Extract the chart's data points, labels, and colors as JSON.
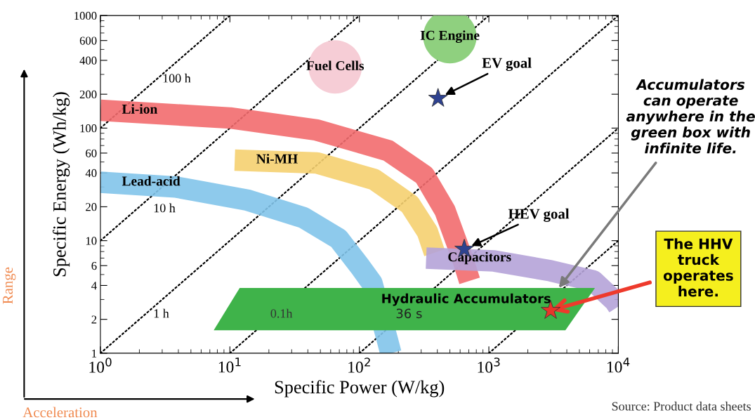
{
  "chart_data": {
    "type": "line",
    "xlabel": "Specific Power (W/kg)",
    "ylabel": "Specific Energy (Wh/kg)",
    "log": "xy",
    "grid": false,
    "legend": false,
    "xlim": [
      1,
      10000
    ],
    "ylim": [
      1,
      1000
    ],
    "xticks": [
      {
        "value": 1,
        "label": "10$^{0}$"
      },
      {
        "value": 10,
        "label": "10$^{1}$"
      },
      {
        "value": 100,
        "label": "10$^{2}$"
      },
      {
        "value": 1000,
        "label": "10$^{3}$"
      },
      {
        "value": 10000,
        "label": "10$^{4}$"
      }
    ],
    "yticks": [
      1,
      2,
      4,
      6,
      10,
      20,
      40,
      60,
      100,
      200,
      400,
      600,
      1000
    ],
    "series": [
      {
        "line_style": "dotted",
        "color": "#000000",
        "x": [
          1,
          10
        ],
        "values": [
          100,
          1000
        ]
      },
      {
        "line_style": "dotted",
        "color": "#000000",
        "x": [
          1,
          100
        ],
        "values": [
          10,
          1000
        ]
      },
      {
        "type": "line",
        "line_style": "dotted",
        "color": "#000000",
        "x": [
          1,
          1000
        ],
        "values": [
          1,
          1000
        ]
      },
      {
        "type": "line",
        "line_style": "dotted",
        "color": "#000000",
        "x": [
          10,
          10000
        ],
        "values": [
          1,
          1000
        ]
      },
      {
        "type": "line",
        "line_style": "dotted",
        "color": "#000000",
        "x": [
          100,
          10000
        ],
        "values": [
          1,
          100
        ]
      },
      {
        "type": "line",
        "line_style": "dotted",
        "color": "#000000",
        "x": [
          1000,
          10000
        ],
        "values": [
          1,
          10
        ]
      },
      {
        "type": "line",
        "name": "Lead-acid",
        "color": "#82c4ea",
        "x": [
          1,
          3.8,
          13.5,
          37,
          69,
          101,
          125,
          165,
          175
        ],
        "values": [
          33,
          30,
          23,
          16,
          10.4,
          5.9,
          4.2,
          1.3,
          1
        ]
      },
      {
        "type": "line",
        "name": "Ni-MH",
        "color": "#f5d070",
        "x": [
          10.9,
          47,
          130,
          245,
          335,
          380
        ],
        "values": [
          52,
          49,
          35,
          21,
          12,
          7.8
        ]
      },
      {
        "type": "line",
        "name": "Li-ion",
        "color": "#f26b6e",
        "x": [
          1,
          10,
          47,
          167,
          317,
          458,
          630,
          710
        ],
        "values": [
          144,
          123,
          96,
          63,
          38,
          18.5,
          6.8,
          4.4
        ]
      },
      {
        "type": "line",
        "name": "Capacitors",
        "color": "#b5a3d8",
        "x": [
          328,
          1100,
          3000,
          6400,
          9400,
          10000
        ],
        "values": [
          7,
          6.6,
          5.4,
          4.4,
          2.9,
          2.6
        ]
      },
      {
        "type": "area",
        "name": "Hydraulic Accumulators",
        "color": "#3fb34a",
        "x": [
          7.5,
          11.9,
          6600,
          3900,
          7.5
        ],
        "values": [
          1.6,
          3.8,
          3.8,
          1.6,
          1.6
        ]
      },
      {
        "type": "scatter",
        "name": "Fuel Cells",
        "marker": "circle",
        "color": "#f6cdd6",
        "x": [
          65
        ],
        "values": [
          350
        ]
      },
      {
        "type": "scatter",
        "name": "IC Engine",
        "marker": "circle",
        "color": "#8fd07f",
        "x": [
          500
        ],
        "values": [
          650
        ]
      },
      {
        "type": "scatter",
        "name": "EV goal",
        "marker": "star",
        "color": "#2e4290",
        "x": [
          405
        ],
        "values": [
          184
        ]
      },
      {
        "type": "scatter",
        "name": "HEV goal",
        "marker": "star",
        "color": "#2e4290",
        "x": [
          646
        ],
        "values": [
          8.4
        ]
      },
      {
        "type": "scatter",
        "marker": "star",
        "color": "#e8352a",
        "x": [
          3000
        ],
        "values": [
          2.4
        ]
      }
    ],
    "annotations": [
      "100 h",
      "10 h",
      "1 h",
      "0.1h",
      "36 s",
      {
        "text": "Accumulators can operate anywhere in the green box with infinite life.",
        "x": 3470,
        "y": 3.8
      },
      {
        "text": "The HHV truck operates here.",
        "x": 3000,
        "y": 2.4
      },
      "Source: Product data sheets",
      "Range",
      "Acceleration"
    ]
  }
}
